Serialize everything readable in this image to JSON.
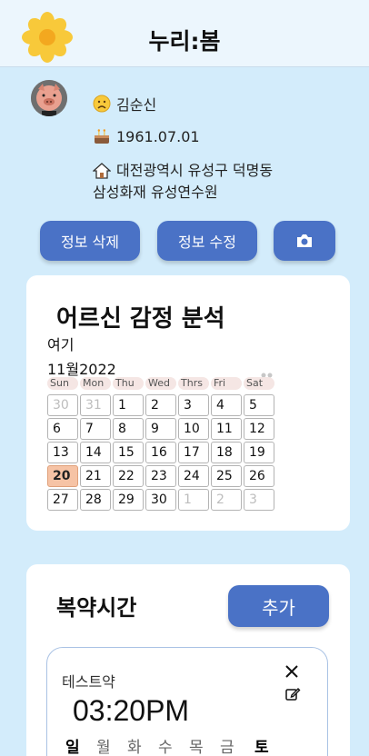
{
  "header": {
    "title": "누리:봄",
    "logo_icon": "sunflower-icon"
  },
  "profile": {
    "name": "김순신",
    "name_icon": "sad-face-icon",
    "birth": "1961.07.01",
    "birth_icon": "birthday-cake-icon",
    "address_line1": "대전광역시 유성구 덕명동",
    "address_line2": "삼성화재 유성연수원",
    "address_icon": "house-icon"
  },
  "actions": {
    "delete_label": "정보 삭제",
    "edit_label": "정보 수정",
    "camera_icon": "camera-icon"
  },
  "emotion": {
    "title": "어르신 감정 분석",
    "subtitle": "여기",
    "month_label": "11월2022",
    "weekdays": [
      "Sun",
      "Mon",
      "Thu",
      "Wed",
      "Thrs",
      "Fri",
      "Sat"
    ],
    "weeks": [
      [
        "30",
        "31",
        "1",
        "2",
        "3",
        "4",
        "5"
      ],
      [
        "6",
        "7",
        "8",
        "9",
        "10",
        "11",
        "12"
      ],
      [
        "13",
        "14",
        "15",
        "16",
        "17",
        "18",
        "19"
      ],
      [
        "20",
        "21",
        "22",
        "23",
        "24",
        "25",
        "26"
      ],
      [
        "27",
        "28",
        "29",
        "30",
        "1",
        "2",
        "3"
      ]
    ],
    "today": "20"
  },
  "medication": {
    "title": "복약시간",
    "add_label": "추가",
    "item": {
      "name": "테스트약",
      "time": "03:20PM",
      "days": [
        "일",
        "월",
        "화",
        "수",
        "목",
        "금",
        "토"
      ],
      "active_days": [
        0,
        6
      ]
    }
  },
  "colors": {
    "accent": "#4a72c6",
    "background": "#d3ecfb",
    "today": "#f6c3a5"
  }
}
